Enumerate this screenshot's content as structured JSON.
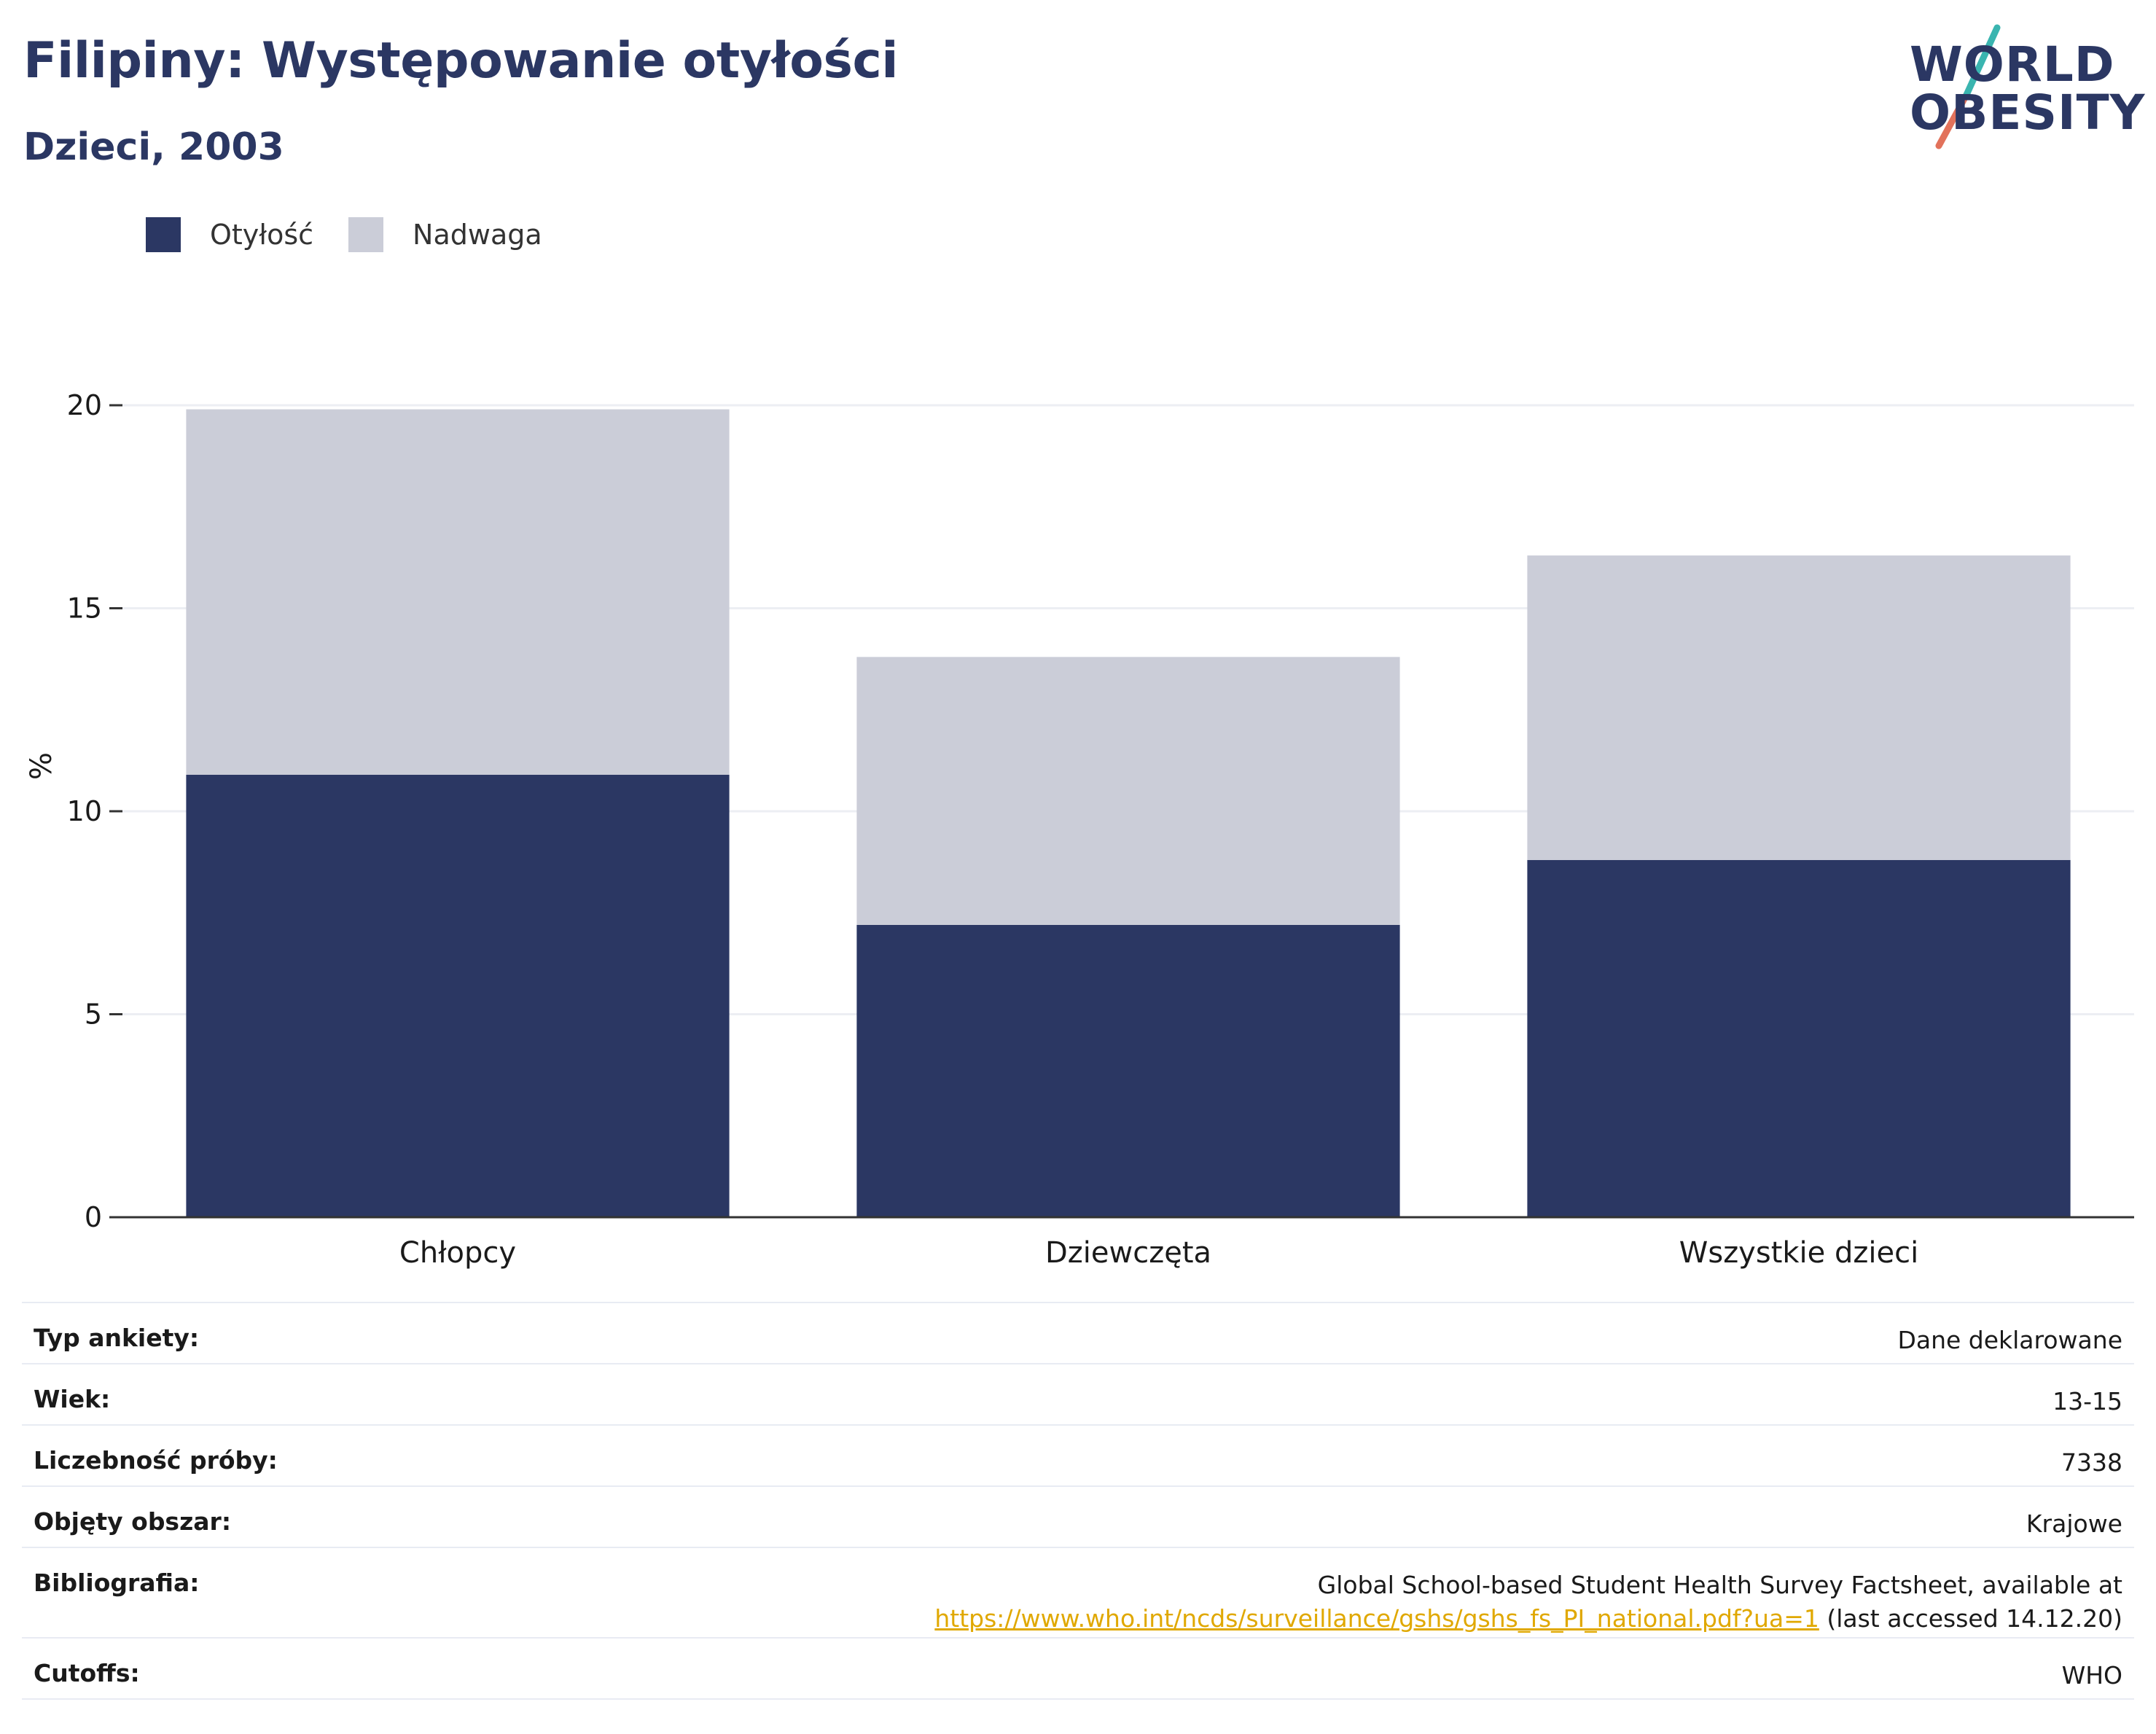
{
  "header": {
    "title": "Filipiny: Występowanie otyłości",
    "subtitle": "Dzieci, 2003"
  },
  "logo": {
    "line1": "WORLD",
    "line2": "OBESITY"
  },
  "colors": {
    "obesity": "#2b3763",
    "overweight": "#cbcdd8",
    "accent_red": "#e2725b",
    "accent_teal": "#3ab5b0"
  },
  "chart_data": {
    "type": "bar",
    "stacked": true,
    "categories": [
      "Chłopcy",
      "Dziewczęta",
      "Wszystkie dzieci"
    ],
    "series": [
      {
        "name": "Otyłość",
        "values": [
          10.9,
          7.2,
          8.8
        ]
      },
      {
        "name": "Nadwaga",
        "values": [
          9.0,
          6.6,
          7.5
        ]
      }
    ],
    "ylabel": "%",
    "ylim": [
      0,
      20
    ],
    "yticks": [
      0,
      5,
      10,
      15,
      20
    ],
    "grid": true,
    "legend_position": "top-left"
  },
  "table": [
    {
      "label": "Typ ankiety:",
      "value": "Dane deklarowane"
    },
    {
      "label": "Wiek:",
      "value": "13-15"
    },
    {
      "label": "Liczebność próby:",
      "value": "7338"
    },
    {
      "label": "Objęty obszar:",
      "value": "Krajowe"
    },
    {
      "label": "Bibliografia:",
      "value_line1": "Global School-based Student Health Survey Factsheet, available at",
      "link": "https://www.who.int/ncds/surveillance/gshs/gshs_fs_PI_national.pdf?ua=1",
      "value_suffix": " (last accessed 14.12.20)"
    },
    {
      "label": "Cutoffs:",
      "value": "WHO"
    }
  ]
}
